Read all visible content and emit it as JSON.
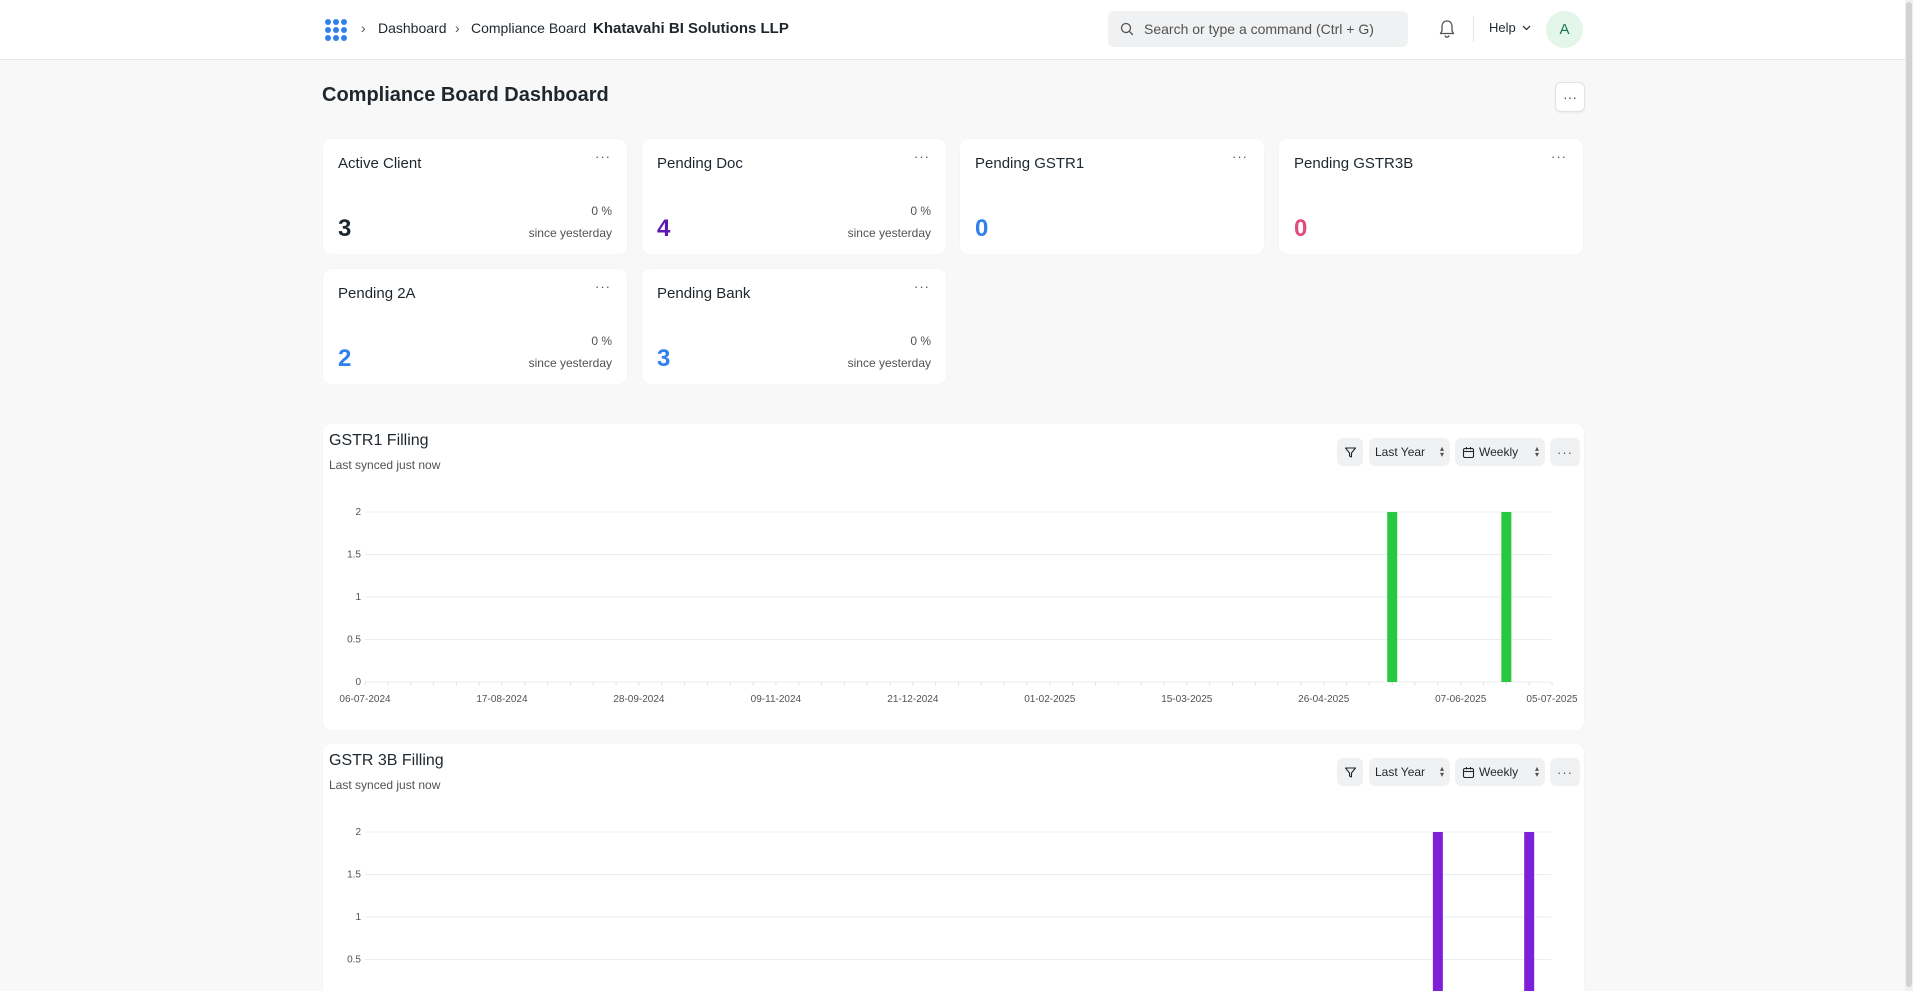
{
  "navbar": {
    "breadcrumbs": [
      "Dashboard",
      "Compliance Board"
    ],
    "current": "Khatavahi BI Solutions LLP",
    "search_placeholder": "Search or type a command (Ctrl + G)",
    "help_label": "Help",
    "avatar_initial": "A"
  },
  "page": {
    "title": "Compliance Board Dashboard",
    "menu_label": "···"
  },
  "cards": [
    {
      "title": "Active Client",
      "value": "3",
      "percent": "0 %",
      "since": "since yesterday",
      "color": "#1f272e"
    },
    {
      "title": "Pending Doc",
      "value": "4",
      "percent": "0 %",
      "since": "since yesterday",
      "color": "#5e17b5"
    },
    {
      "title": "Pending GSTR1",
      "value": "0",
      "percent": "",
      "since": "",
      "color": "#2f80ed"
    },
    {
      "title": "Pending GSTR3B",
      "value": "0",
      "percent": "",
      "since": "",
      "color": "#e24c7c"
    },
    {
      "title": "Pending 2A",
      "value": "2",
      "percent": "0 %",
      "since": "since yesterday",
      "color": "#2f80ed"
    },
    {
      "title": "Pending Bank",
      "value": "3",
      "percent": "0 %",
      "since": "since yesterday",
      "color": "#2f80ed"
    }
  ],
  "charts": [
    {
      "title": "GSTR1 Filling",
      "subtitle": "Last synced just now",
      "range_label": "Last Year",
      "period_label": "Weekly",
      "menu_label": "···"
    },
    {
      "title": "GSTR 3B Filling",
      "subtitle": "Last synced just now",
      "range_label": "Last Year",
      "period_label": "Weekly",
      "menu_label": "···"
    }
  ],
  "chart_data": [
    {
      "type": "bar",
      "title": "GSTR1 Filling",
      "x_tick_labels": [
        "06-07-2024",
        "17-08-2024",
        "28-09-2024",
        "09-11-2024",
        "21-12-2024",
        "01-02-2025",
        "15-03-2025",
        "26-04-2025",
        "07-06-2025",
        "05-07-2025"
      ],
      "y_ticks": [
        "0",
        "0.5",
        "1",
        "1.5",
        "2"
      ],
      "ylim": [
        0,
        2
      ],
      "x": [
        "17-05-2025",
        "21-06-2025"
      ],
      "values": [
        2,
        2
      ],
      "color": "#28c840",
      "grid": true
    },
    {
      "type": "bar",
      "title": "GSTR 3B Filling",
      "y_ticks": [
        "0.5",
        "1",
        "1.5",
        "2"
      ],
      "ylim": [
        0,
        2
      ],
      "x": [
        "31-05-2025",
        "28-06-2025"
      ],
      "values": [
        2,
        2
      ],
      "color": "#7e20d8",
      "grid": true
    }
  ]
}
